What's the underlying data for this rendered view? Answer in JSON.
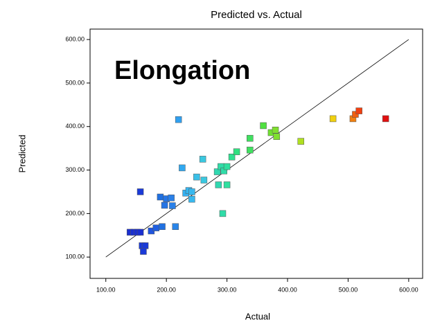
{
  "chart_data": {
    "type": "scatter",
    "title": "Predicted vs. Actual",
    "x_label": "Actual",
    "y_label": "Predicted",
    "annotation": "Elongation",
    "xlim": [
      74,
      623
    ],
    "ylim": [
      51,
      624
    ],
    "xticks": [
      {
        "value": 100,
        "label": "100.00"
      },
      {
        "value": 200,
        "label": "200.00"
      },
      {
        "value": 300,
        "label": "300.00"
      },
      {
        "value": 400,
        "label": "400.00"
      },
      {
        "value": 500,
        "label": "500.00"
      },
      {
        "value": 600,
        "label": "600.00"
      }
    ],
    "yticks": [
      {
        "value": 100,
        "label": "100.00"
      },
      {
        "value": 200,
        "label": "200.00"
      },
      {
        "value": 300,
        "label": "300.00"
      },
      {
        "value": 400,
        "label": "400.00"
      },
      {
        "value": 500,
        "label": "500.00"
      },
      {
        "value": 600,
        "label": "600.00"
      }
    ],
    "x": [
      140,
      146,
      152,
      157,
      160,
      165,
      162,
      157,
      175,
      183,
      193,
      190,
      197,
      200,
      208,
      210,
      215,
      220,
      226,
      232,
      237,
      242,
      242,
      250,
      260,
      262,
      284,
      286,
      290,
      293,
      295,
      300,
      300,
      308,
      316,
      338,
      338,
      360,
      373,
      380,
      382,
      422,
      475,
      508,
      512,
      518,
      562
    ],
    "values": [
      157,
      157,
      157,
      157,
      126,
      126,
      113,
      250,
      160,
      167,
      170,
      238,
      219,
      234,
      236,
      218,
      170,
      416,
      305,
      247,
      253,
      250,
      233,
      284,
      325,
      277,
      296,
      266,
      308,
      200,
      298,
      308,
      266,
      330,
      342,
      373,
      346,
      402,
      386,
      392,
      377,
      366,
      418,
      418,
      428,
      436,
      418
    ],
    "colors": [
      "#1a2fd0",
      "#1a2fd0",
      "#1a2fd0",
      "#1a2fd0",
      "#1a3ad8",
      "#1a3ad8",
      "#1a3ad8",
      "#1a3ad8",
      "#1f55e0",
      "#1f5fe0",
      "#2070e0",
      "#2070e0",
      "#2575e5",
      "#2575e5",
      "#2a80e8",
      "#2a80e8",
      "#2a85e8",
      "#30a0f0",
      "#30a8f0",
      "#35b0f0",
      "#35b5f0",
      "#38b8ee",
      "#38b8ee",
      "#3ac0e8",
      "#3ac8e0",
      "#3ac8e0",
      "#30d8b0",
      "#30d8b0",
      "#30dca8",
      "#30dca8",
      "#30dca8",
      "#30e0a0",
      "#30e0a0",
      "#30e090",
      "#30e080",
      "#40e060",
      "#40e060",
      "#50e040",
      "#70e030",
      "#80e030",
      "#80e030",
      "#b0e020",
      "#f0d010",
      "#f08010",
      "#f06010",
      "#f04010",
      "#e01010"
    ]
  }
}
